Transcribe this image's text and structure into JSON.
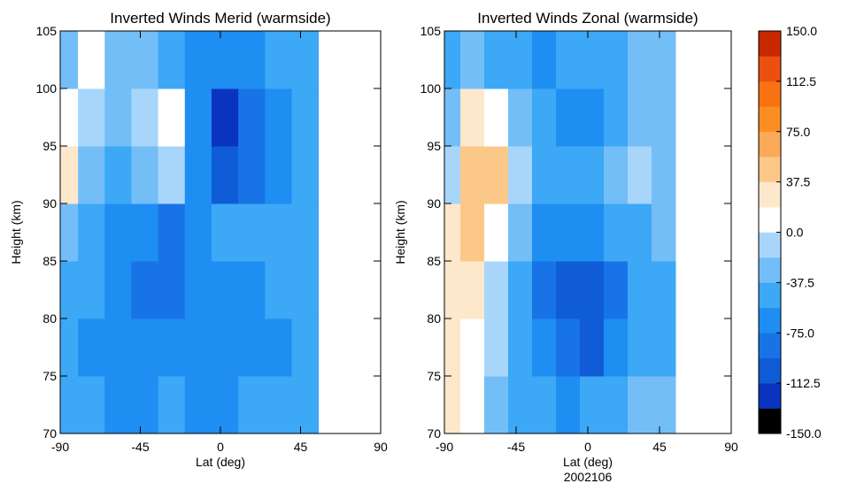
{
  "chart_data": [
    {
      "type": "contour",
      "title": "Inverted Winds Merid (warmside)",
      "xlabel": "Lat (deg)",
      "ylabel": "Height (km)",
      "xlim": [
        -90,
        90
      ],
      "ylim": [
        70,
        105
      ],
      "xticks": [
        -90,
        -45,
        0,
        45,
        90
      ],
      "yticks": [
        70,
        75,
        80,
        85,
        90,
        95,
        100,
        105
      ],
      "x": [
        -87.5,
        -72.5,
        -57.5,
        -42.5,
        -27.5,
        -12.5,
        2.5,
        17.5,
        32.5,
        47.5
      ],
      "y": [
        72.5,
        77.5,
        82.5,
        87.5,
        92.5,
        97.5,
        102.5
      ],
      "z": [
        [
          -45,
          -55,
          -60,
          -60,
          -55,
          -60,
          -65,
          -55,
          -45,
          -40
        ],
        [
          -45,
          -60,
          -70,
          -75,
          -70,
          -65,
          -60,
          -65,
          -60,
          -50
        ],
        [
          -40,
          -55,
          -70,
          -80,
          -85,
          -70,
          -60,
          -60,
          -55,
          -50
        ],
        [
          -20,
          -40,
          -60,
          -75,
          -80,
          -65,
          -55,
          -55,
          -55,
          -50
        ],
        [
          20,
          -20,
          -40,
          -35,
          -10,
          -60,
          -100,
          -80,
          -60,
          -55
        ],
        [
          5,
          -5,
          -30,
          -10,
          5,
          -70,
          -130,
          -90,
          -60,
          -50
        ],
        [
          -30,
          5,
          -20,
          -35,
          -40,
          -60,
          -75,
          -60,
          -45,
          -40
        ]
      ]
    },
    {
      "type": "contour",
      "title": "Inverted Winds Zonal (warmside)",
      "xlabel": "Lat (deg)",
      "ylabel": "Height (km)",
      "date_label": "2002106",
      "xlim": [
        -90,
        90
      ],
      "ylim": [
        70,
        105
      ],
      "xticks": [
        -90,
        -45,
        0,
        45,
        90
      ],
      "yticks": [
        70,
        75,
        80,
        85,
        90,
        95,
        100,
        105
      ],
      "x": [
        -87.5,
        -72.5,
        -57.5,
        -42.5,
        -27.5,
        -12.5,
        2.5,
        17.5,
        32.5,
        47.5
      ],
      "y": [
        72.5,
        77.5,
        82.5,
        87.5,
        92.5,
        97.5,
        102.5
      ],
      "z": [
        [
          30,
          10,
          -20,
          -40,
          -50,
          -60,
          -55,
          -50,
          -35,
          -30
        ],
        [
          35,
          15,
          -15,
          -45,
          -70,
          -90,
          -95,
          -75,
          -50,
          -40
        ],
        [
          25,
          20,
          -10,
          -50,
          -90,
          -100,
          -105,
          -80,
          -55,
          -40
        ],
        [
          20,
          40,
          10,
          -35,
          -60,
          -70,
          -70,
          -55,
          -40,
          -30
        ],
        [
          -10,
          50,
          40,
          -10,
          -45,
          -55,
          -50,
          -35,
          -15,
          -25
        ],
        [
          -30,
          20,
          15,
          -25,
          -50,
          -60,
          -70,
          -50,
          -30,
          -25
        ],
        [
          -45,
          -35,
          -40,
          -50,
          -60,
          -55,
          -55,
          -45,
          -35,
          -30
        ]
      ]
    }
  ],
  "colorbar": {
    "levels": [
      -150,
      -131.25,
      -112.5,
      -93.75,
      -75,
      -56.25,
      -37.5,
      -18.75,
      0,
      18.75,
      37.5,
      56.25,
      75,
      93.75,
      112.5,
      131.25,
      150
    ],
    "colors": [
      "#000000",
      "#0a34c0",
      "#0f5cd6",
      "#1874e6",
      "#1e8ef2",
      "#3ca8f6",
      "#74bef8",
      "#a8d6fa",
      "#ffffff",
      "#fde8cc",
      "#fcc88a",
      "#fbaa5a",
      "#fb8e22",
      "#f87212",
      "#ec5010",
      "#c82800"
    ],
    "ylim": [
      -150,
      150
    ],
    "yticks": [
      {
        "value": 150,
        "label": "150.0"
      },
      112.5,
      {
        "value": 75,
        "label": "75.0"
      },
      37.5,
      {
        "value": 0,
        "label": "0.0"
      },
      -37.5,
      {
        "value": -75,
        "label": "-75.0"
      },
      -112.5,
      {
        "value": -150,
        "label": "-150.0"
      }
    ]
  }
}
